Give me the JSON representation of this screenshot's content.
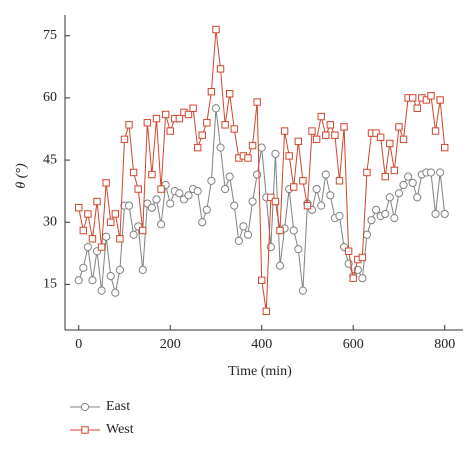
{
  "chart_data": {
    "type": "line",
    "xlabel": "Time (min)",
    "ylabel": "θ (°)",
    "x": [
      0,
      10,
      20,
      30,
      40,
      50,
      60,
      70,
      80,
      90,
      100,
      110,
      120,
      130,
      140,
      150,
      160,
      170,
      180,
      190,
      200,
      210,
      220,
      230,
      240,
      250,
      260,
      270,
      280,
      290,
      300,
      310,
      320,
      330,
      340,
      350,
      360,
      370,
      380,
      390,
      400,
      410,
      420,
      430,
      440,
      450,
      460,
      470,
      480,
      490,
      500,
      510,
      520,
      530,
      540,
      550,
      560,
      570,
      580,
      590,
      600,
      610,
      620,
      630,
      640,
      650,
      660,
      670,
      680,
      690,
      700,
      710,
      720,
      730,
      740,
      750,
      760,
      770,
      780,
      790,
      800
    ],
    "series": [
      {
        "name": "East",
        "color": "#808080",
        "marker": "circle",
        "values": [
          16,
          19,
          24,
          16,
          23,
          13.5,
          26.5,
          17,
          13,
          18.5,
          34,
          34,
          27,
          29,
          18.5,
          34.5,
          33.5,
          35.5,
          29.5,
          39,
          34.5,
          37.5,
          37,
          35.5,
          36.5,
          38,
          37.5,
          30,
          33,
          40,
          57.5,
          48,
          38,
          41,
          34,
          25.5,
          29,
          27,
          35,
          41.5,
          48,
          36,
          24,
          46.5,
          19.5,
          28.5,
          38,
          28,
          23.5,
          13.5,
          34.5,
          33,
          38,
          34,
          41.5,
          36.5,
          31,
          31.5,
          24,
          20,
          17,
          18.5,
          16.5,
          27,
          30.5,
          33,
          31.5,
          32,
          36,
          31,
          37,
          39,
          41,
          39.5,
          36,
          41.5,
          42,
          42,
          32,
          42,
          32
        ]
      },
      {
        "name": "West",
        "color": "#d2452b",
        "marker": "square",
        "values": [
          33.5,
          28,
          32,
          26,
          35,
          24,
          39.5,
          30,
          32,
          26,
          50,
          53.5,
          42,
          38,
          28,
          54,
          41.5,
          55,
          38,
          56,
          52,
          55,
          55,
          56.5,
          56,
          57.5,
          48,
          51,
          54,
          61.5,
          76.5,
          67,
          53.5,
          61,
          52.5,
          45.5,
          46,
          45.5,
          48.5,
          59,
          16,
          8.5,
          36,
          35,
          28,
          52,
          46,
          38.5,
          49.5,
          40,
          34,
          52,
          50,
          55.5,
          51,
          53.5,
          51,
          40,
          53,
          23,
          16.5,
          21,
          21.5,
          42,
          51.5,
          51.5,
          50.5,
          41,
          49,
          42.5,
          53,
          50,
          60,
          60,
          57.5,
          60,
          59.5,
          60.5,
          52,
          59.5,
          48
        ]
      }
    ],
    "xlim": [
      -30,
      840
    ],
    "ylim": [
      4,
      80
    ],
    "xticks": [
      0,
      200,
      400,
      600,
      800
    ],
    "yticks": [
      15,
      30,
      45,
      60,
      75
    ],
    "legend": "bottom-left"
  }
}
